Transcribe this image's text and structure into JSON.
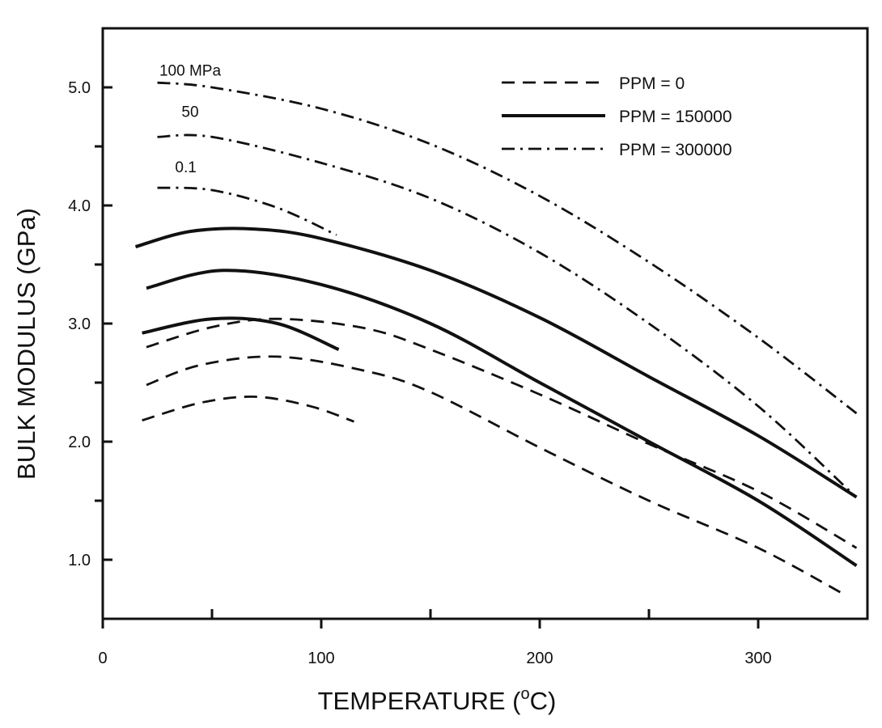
{
  "chart_data": {
    "type": "line",
    "xlabel": "TEMPERATURE (°C)",
    "xlabel_parts": {
      "main": "TEMPERATURE (",
      "sup": "o",
      "end": "C)"
    },
    "ylabel": "BULK MODULUS (GPa)",
    "xlim": [
      0,
      350
    ],
    "ylim": [
      0.5,
      5.5
    ],
    "x_ticks": [
      0,
      100,
      200,
      300
    ],
    "x_minor_ticks": [
      50,
      150,
      250
    ],
    "y_ticks": [
      1.0,
      2.0,
      3.0,
      4.0,
      5.0
    ],
    "y_tick_labels": [
      "1.0",
      "2.0",
      "3.0",
      "4.0",
      "5.0"
    ],
    "y_minor_ticks": [
      1.5,
      2.5,
      3.5,
      4.5
    ],
    "grid": false,
    "legend": {
      "placement": "top-right",
      "entries": [
        {
          "label": "PPM = 0",
          "style": "dashed"
        },
        {
          "label": "PPM = 150000",
          "style": "solid"
        },
        {
          "label": "PPM = 300000",
          "style": "dash-dot"
        }
      ]
    },
    "annotations": [
      {
        "text": "100  MPa",
        "x": 40,
        "y": 5.1
      },
      {
        "text": "50",
        "x": 40,
        "y": 4.75
      },
      {
        "text": "0.1",
        "x": 38,
        "y": 4.28
      }
    ],
    "series": [
      {
        "group": "PPM = 300000",
        "pressure": "100 MPa",
        "style": "dash-dot",
        "points": [
          [
            25,
            5.04
          ],
          [
            50,
            5.0
          ],
          [
            100,
            4.82
          ],
          [
            150,
            4.52
          ],
          [
            200,
            4.08
          ],
          [
            250,
            3.52
          ],
          [
            300,
            2.88
          ],
          [
            345,
            2.24
          ]
        ]
      },
      {
        "group": "PPM = 300000",
        "pressure": "50 MPa",
        "style": "dash-dot",
        "points": [
          [
            25,
            4.58
          ],
          [
            50,
            4.58
          ],
          [
            100,
            4.36
          ],
          [
            150,
            4.06
          ],
          [
            200,
            3.6
          ],
          [
            250,
            3.0
          ],
          [
            300,
            2.3
          ],
          [
            342,
            1.58
          ]
        ]
      },
      {
        "group": "PPM = 300000",
        "pressure": "0.1 MPa",
        "style": "dash-dot",
        "points": [
          [
            25,
            4.15
          ],
          [
            50,
            4.13
          ],
          [
            80,
            3.98
          ],
          [
            107,
            3.75
          ]
        ]
      },
      {
        "group": "PPM = 150000",
        "pressure": "100 MPa",
        "style": "solid",
        "points": [
          [
            15,
            3.65
          ],
          [
            40,
            3.78
          ],
          [
            70,
            3.8
          ],
          [
            100,
            3.72
          ],
          [
            150,
            3.45
          ],
          [
            200,
            3.05
          ],
          [
            250,
            2.55
          ],
          [
            300,
            2.05
          ],
          [
            345,
            1.53
          ]
        ]
      },
      {
        "group": "PPM = 150000",
        "pressure": "50 MPa",
        "style": "solid",
        "points": [
          [
            20,
            3.3
          ],
          [
            55,
            3.45
          ],
          [
            100,
            3.33
          ],
          [
            150,
            3.0
          ],
          [
            200,
            2.5
          ],
          [
            250,
            2.0
          ],
          [
            300,
            1.5
          ],
          [
            345,
            0.95
          ]
        ]
      },
      {
        "group": "PPM = 150000",
        "pressure": "0.1 MPa",
        "style": "solid",
        "points": [
          [
            18,
            2.92
          ],
          [
            50,
            3.04
          ],
          [
            80,
            3.0
          ],
          [
            108,
            2.78
          ]
        ]
      },
      {
        "group": "PPM = 0",
        "pressure": "100 MPa",
        "style": "dashed",
        "points": [
          [
            20,
            2.8
          ],
          [
            50,
            2.97
          ],
          [
            80,
            3.04
          ],
          [
            120,
            2.96
          ],
          [
            150,
            2.78
          ],
          [
            200,
            2.4
          ],
          [
            250,
            1.98
          ],
          [
            300,
            1.58
          ],
          [
            345,
            1.1
          ]
        ]
      },
      {
        "group": "PPM = 0",
        "pressure": "50 MPa",
        "style": "dashed",
        "points": [
          [
            20,
            2.48
          ],
          [
            45,
            2.65
          ],
          [
            80,
            2.72
          ],
          [
            120,
            2.6
          ],
          [
            150,
            2.42
          ],
          [
            200,
            1.95
          ],
          [
            250,
            1.5
          ],
          [
            300,
            1.1
          ],
          [
            340,
            0.7
          ]
        ]
      },
      {
        "group": "PPM = 0",
        "pressure": "0.1 MPa",
        "style": "dashed",
        "points": [
          [
            18,
            2.18
          ],
          [
            45,
            2.33
          ],
          [
            70,
            2.38
          ],
          [
            95,
            2.3
          ],
          [
            115,
            2.17
          ]
        ]
      }
    ]
  }
}
